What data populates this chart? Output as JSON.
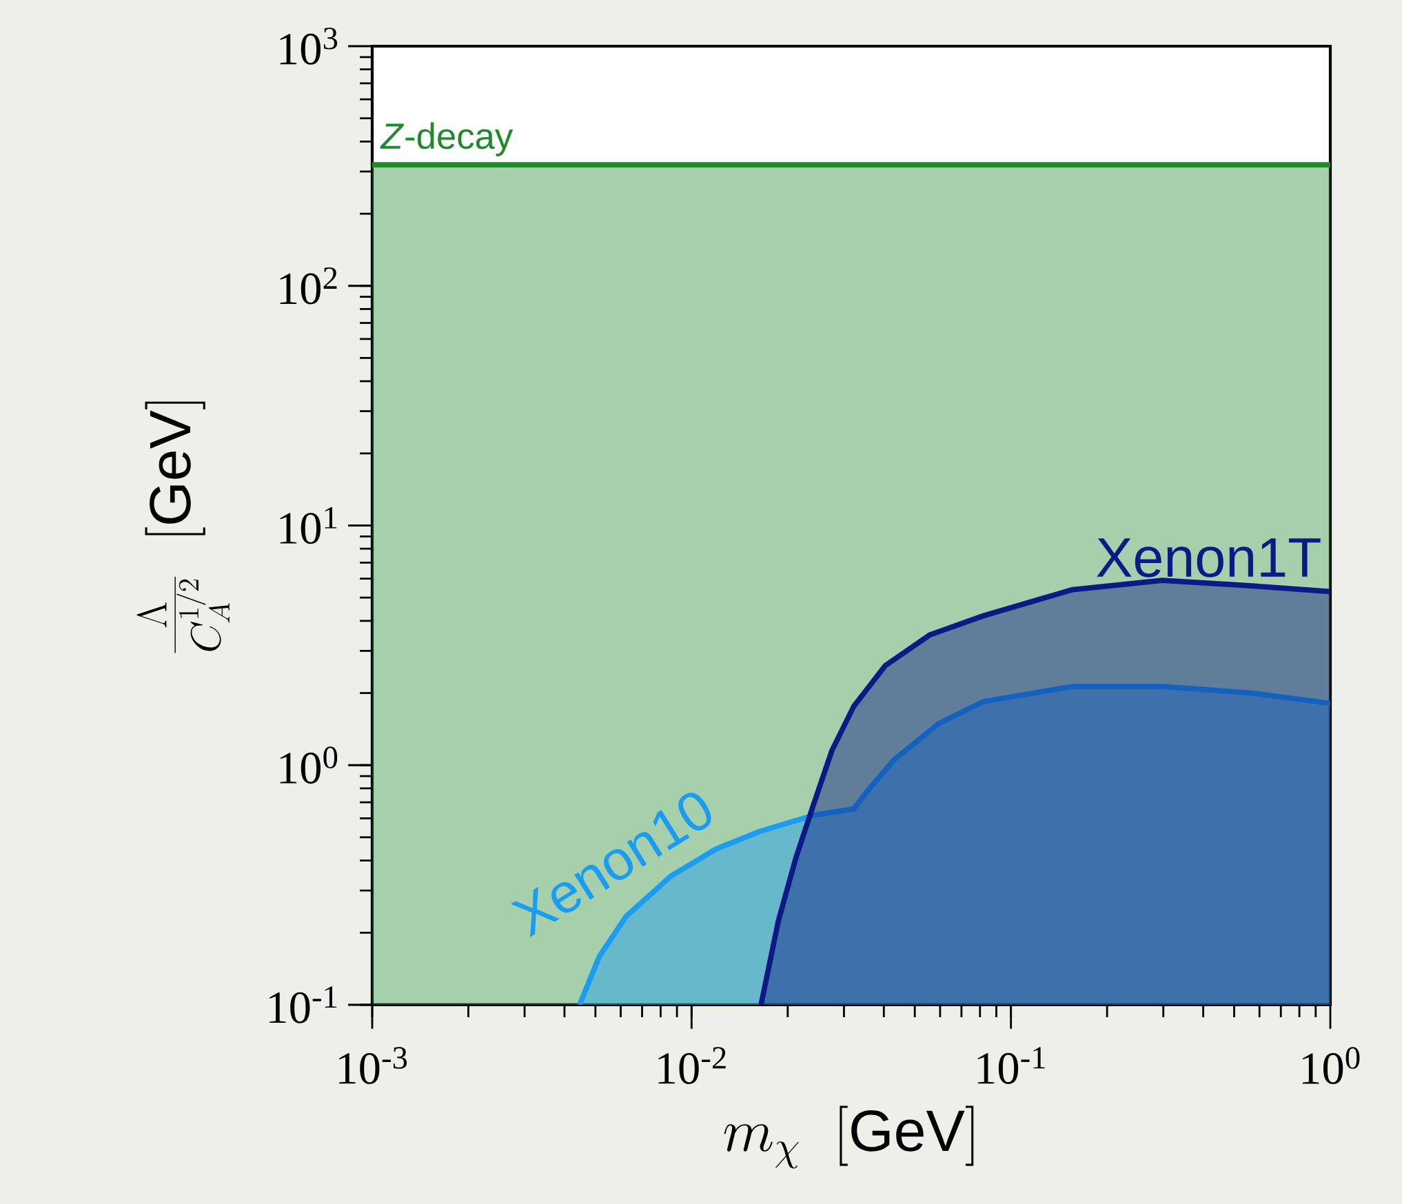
{
  "chart_data": {
    "type": "area",
    "xlabel": "m_{\\chi}\\ \\ [\\mathrm{GeV}]",
    "ylabel": "\\frac{\\Lambda}{C_{A}^{1/2}}\\ \\ [\\mathrm{GeV}]",
    "log": "xy",
    "grid": false,
    "xlim": [
      0.001,
      1
    ],
    "ylim": [
      0.1,
      1000
    ],
    "xticks": [
      {
        "value": 0.001,
        "label": "10$^{-3}$"
      },
      {
        "value": 0.01,
        "label": "10$^{-2}$"
      },
      {
        "value": 0.1,
        "label": "10$^{-1}$"
      },
      {
        "value": 1,
        "label": "10$^{0}$"
      }
    ],
    "yticks": [
      {
        "value": 0.1,
        "label": "10$^{-1}$"
      },
      {
        "value": 1,
        "label": "10$^{0}$"
      },
      {
        "value": 10,
        "label": "10$^{1}$"
      },
      {
        "value": 100,
        "label": "10$^{2}$"
      },
      {
        "value": 1000,
        "label": "10$^{3}$"
      }
    ],
    "series": [
      {
        "name": "*Z*-decay",
        "color": "#1f8a2c",
        "x": [
          0.001,
          1
        ],
        "values": [
          320,
          320
        ]
      },
      {
        "name": "Xenon10",
        "color": "#1a9cf0",
        "x": [
          0.00446,
          0.00514,
          0.00624,
          0.00861,
          0.0119,
          0.0164,
          0.0241,
          0.0322,
          0.0355,
          0.043,
          0.0594,
          0.082,
          0.156,
          0.298,
          0.568,
          1
        ],
        "values": [
          0.1,
          0.159,
          0.234,
          0.344,
          0.446,
          0.53,
          0.618,
          0.656,
          0.78,
          1.05,
          1.49,
          1.84,
          2.13,
          2.13,
          2.0,
          1.81
        ]
      },
      {
        "name": "Xenon1T",
        "color": "#0d1a85",
        "x": [
          0.0165,
          0.0187,
          0.0212,
          0.0241,
          0.0275,
          0.0322,
          0.0404,
          0.0558,
          0.082,
          0.156,
          0.298,
          0.568,
          1
        ],
        "values": [
          0.1,
          0.224,
          0.409,
          0.686,
          1.15,
          1.76,
          2.6,
          3.5,
          4.2,
          5.4,
          5.9,
          5.6,
          5.3
        ]
      }
    ]
  }
}
